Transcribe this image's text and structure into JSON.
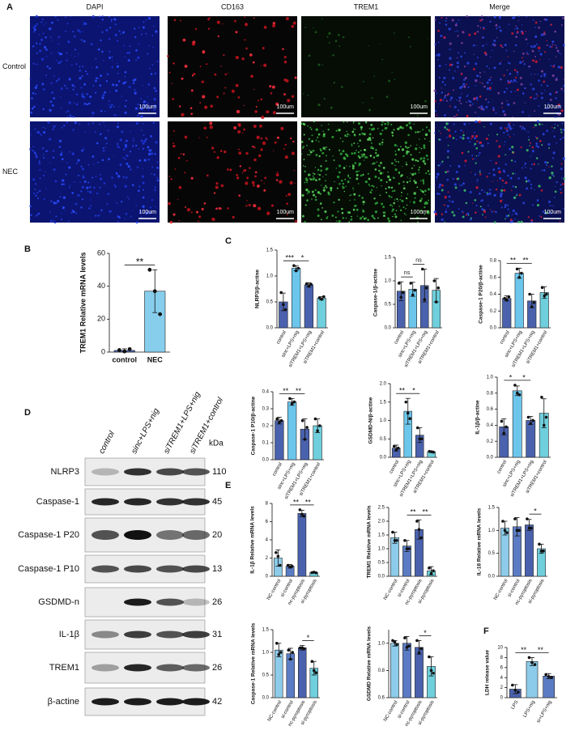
{
  "panel_a": {
    "label": "A",
    "columns": [
      "DAPI",
      "CD163",
      "TREM1",
      "Merge"
    ],
    "rows": [
      "Control",
      "NEC"
    ],
    "scale_bar": "100um"
  },
  "panel_d": {
    "label": "D",
    "lanes": [
      "control",
      "sinc+LPS+nig",
      "siTREM1+LPS+nig",
      "siTREM1+control"
    ],
    "unit": "kDa",
    "rows": [
      {
        "protein": "NLRP3",
        "kda": 110
      },
      {
        "protein": "Caspase-1",
        "kda": 45
      },
      {
        "protein": "Caspase-1 P20",
        "kda": 20
      },
      {
        "protein": "Caspase-1 P10",
        "kda": 13
      },
      {
        "protein": "GSDMD-n",
        "kda": 26
      },
      {
        "protein": "IL-1β",
        "kda": 31
      },
      {
        "protein": "TREM1",
        "kda": 26
      },
      {
        "protein": "β-actine",
        "kda": 42
      }
    ]
  },
  "chart_data": [
    {
      "type": "bar",
      "panel": "B",
      "ylabel": "TREM1 Relative mRNA levels",
      "categories": [
        "control",
        "NEC"
      ],
      "values": [
        1,
        37
      ],
      "errors": [
        1,
        13
      ],
      "points": [
        [
          1.2,
          0.4,
          1.8
        ],
        [
          50,
          37,
          23
        ]
      ],
      "colors": [
        "#4a62ad",
        "#87cdec"
      ],
      "ylim": [
        0,
        60
      ],
      "yticks": [
        0,
        20,
        40,
        60
      ],
      "brackets": [
        {
          "span": [
            0,
            1
          ],
          "label": "**"
        }
      ]
    },
    {
      "type": "bar",
      "panel": "C",
      "ylabel": "NLRP3/β-actine",
      "categories": [
        "control",
        "sinc+LPS+nig",
        "siTREM1+LPS+nig",
        "siTREM1+control"
      ],
      "values": [
        0.5,
        1.15,
        0.83,
        0.57
      ],
      "errors": [
        0.17,
        0.05,
        0.04,
        0.03
      ],
      "points": [
        [
          0.68,
          0.45,
          0.35
        ],
        [
          1.2,
          1.1,
          1.15
        ],
        [
          0.85,
          0.8,
          0.84
        ],
        [
          0.58,
          0.55,
          0.6
        ]
      ],
      "colors": [
        "#4a62ad",
        "#6cc6ec",
        "#4a62ad",
        "#6fcfdc"
      ],
      "ylim": [
        0,
        1.5
      ],
      "yticks": [
        {
          "value": 0,
          "label": "0.0"
        },
        0.5,
        {
          "value": 1,
          "label": "1.0"
        },
        1.5
      ],
      "brackets": [
        {
          "span": [
            0,
            1
          ],
          "label": "***"
        },
        {
          "span": [
            1,
            2
          ],
          "label": "*"
        }
      ]
    },
    {
      "type": "bar",
      "ylabel": "Caspase-1/β-actine",
      "categories": [
        "control",
        "sinc+LPS+nig",
        "siTREM1+LPS+nig",
        "siTREM1+control"
      ],
      "values": [
        0.78,
        0.82,
        0.9,
        0.8
      ],
      "errors": [
        0.2,
        0.15,
        0.35,
        0.25
      ],
      "points": [
        [
          0.95,
          0.65,
          0.75
        ],
        [
          0.95,
          0.7,
          0.8
        ],
        [
          1.25,
          0.6,
          0.85
        ],
        [
          1.0,
          0.55,
          0.85
        ]
      ],
      "colors": [
        "#4a62ad",
        "#6cc6ec",
        "#4a62ad",
        "#6fcfdc"
      ],
      "ylim": [
        0,
        1.5
      ],
      "yticks": [
        {
          "value": 0,
          "label": "0.0"
        },
        0.5,
        {
          "value": 1,
          "label": "1.0"
        },
        1.5
      ],
      "brackets": [
        {
          "span": [
            0,
            1
          ],
          "label": "ns"
        },
        {
          "span": [
            1,
            2
          ],
          "label": "ns"
        }
      ]
    },
    {
      "type": "bar",
      "ylabel": "Caspase-1 P20/β-actine",
      "categories": [
        "control",
        "sinc+LPS+nig",
        "siTREM1+LPS+nig",
        "siTREM1+control"
      ],
      "values": [
        0.35,
        0.65,
        0.32,
        0.42
      ],
      "errors": [
        0.03,
        0.06,
        0.08,
        0.07
      ],
      "points": [
        [
          0.35,
          0.33,
          0.37
        ],
        [
          0.7,
          0.6,
          0.65
        ],
        [
          0.4,
          0.25,
          0.3
        ],
        [
          0.48,
          0.38,
          0.4
        ]
      ],
      "colors": [
        "#4a62ad",
        "#6cc6ec",
        "#4a62ad",
        "#6fcfdc"
      ],
      "ylim": [
        0,
        0.8
      ],
      "yticks": [
        {
          "value": 0,
          "label": "0.0"
        },
        0.2,
        0.4,
        0.6,
        0.8
      ],
      "brackets": [
        {
          "span": [
            0,
            1
          ],
          "label": "**"
        },
        {
          "span": [
            1,
            2
          ],
          "label": "**"
        }
      ]
    },
    {
      "type": "bar",
      "ylabel": "Caspase-1 P10/β-actine",
      "categories": [
        "control",
        "sinc+LPS+nig",
        "siTREM1+LPS+nig",
        "siTREM1+control"
      ],
      "values": [
        0.23,
        0.34,
        0.18,
        0.2
      ],
      "errors": [
        0.02,
        0.02,
        0.06,
        0.04
      ],
      "points": [
        [
          0.24,
          0.22,
          0.23
        ],
        [
          0.36,
          0.33,
          0.34
        ],
        [
          0.23,
          0.12,
          0.19
        ],
        [
          0.24,
          0.17,
          0.2
        ]
      ],
      "colors": [
        "#4a62ad",
        "#6cc6ec",
        "#4a62ad",
        "#6fcfdc"
      ],
      "ylim": [
        0,
        0.4
      ],
      "yticks": [
        {
          "value": 0,
          "label": "0.0"
        },
        0.1,
        0.2,
        0.3,
        0.4
      ],
      "brackets": [
        {
          "span": [
            0,
            1
          ],
          "label": "**"
        },
        {
          "span": [
            1,
            2
          ],
          "label": "**"
        }
      ]
    },
    {
      "type": "bar",
      "ylabel": "GSDMD-N/β-actine",
      "categories": [
        "control",
        "sinc+LPS+nig",
        "siTREM1+LPS+nig",
        "siTREM1+control"
      ],
      "values": [
        0.25,
        1.25,
        0.6,
        0.15
      ],
      "errors": [
        0.08,
        0.35,
        0.2,
        0.02
      ],
      "points": [
        [
          0.3,
          0.2,
          0.25
        ],
        [
          1.5,
          1.2,
          1.05
        ],
        [
          0.8,
          0.5,
          0.5
        ],
        [
          0.16,
          0.15,
          0.14
        ]
      ],
      "colors": [
        "#4a62ad",
        "#6cc6ec",
        "#4a62ad",
        "#6fcfdc"
      ],
      "ylim": [
        0,
        2
      ],
      "yticks": [
        {
          "value": 0,
          "label": "0.0"
        },
        0.5,
        {
          "value": 1,
          "label": "1.0"
        },
        1.5,
        {
          "value": 2,
          "label": "2.0"
        }
      ],
      "brackets": [
        {
          "span": [
            0,
            1
          ],
          "label": "**"
        },
        {
          "span": [
            1,
            2
          ],
          "label": "*"
        }
      ]
    },
    {
      "type": "bar",
      "ylabel": "IL-1β/β-actine",
      "categories": [
        "control",
        "sinc+LPS+nig",
        "siTREM1+LPS+nig",
        "siTREM1+control"
      ],
      "values": [
        0.38,
        0.83,
        0.46,
        0.55
      ],
      "errors": [
        0.1,
        0.06,
        0.05,
        0.18
      ],
      "points": [
        [
          0.45,
          0.3,
          0.38
        ],
        [
          0.9,
          0.8,
          0.78
        ],
        [
          0.5,
          0.42,
          0.46
        ],
        [
          0.75,
          0.4,
          0.5
        ]
      ],
      "colors": [
        "#4a62ad",
        "#6cc6ec",
        "#4a62ad",
        "#6fcfdc"
      ],
      "ylim": [
        0,
        1
      ],
      "yticks": [
        {
          "value": 0,
          "label": "0.0"
        },
        0.2,
        0.4,
        0.6,
        0.8,
        {
          "value": 1,
          "label": "1.0"
        }
      ],
      "brackets": [
        {
          "span": [
            0,
            1
          ],
          "label": "*"
        },
        {
          "span": [
            1,
            2
          ],
          "label": "*"
        }
      ]
    },
    {
      "type": "bar",
      "panel": "E",
      "ylabel": "IL-1β Relative mRNA levels",
      "categories": [
        "NC-control",
        "si-control",
        "nc-pyroptosis",
        "si-pyroptosis"
      ],
      "values": [
        2.0,
        1.1,
        6.9,
        0.4
      ],
      "errors": [
        0.9,
        0.2,
        0.35,
        0.05
      ],
      "points": [
        [
          2.6,
          2.2,
          1.2
        ],
        [
          1.2,
          1.0,
          1.1
        ],
        [
          7.3,
          6.8,
          6.6
        ],
        [
          0.4,
          0.45,
          0.38
        ]
      ],
      "colors": [
        "#8ccbe9",
        "#5b7cc4",
        "#4a62ad",
        "#6fcfdc"
      ],
      "ylim": [
        0,
        8
      ],
      "yticks": [
        0,
        2,
        4,
        6,
        8
      ],
      "brackets": [
        {
          "span": [
            1,
            2
          ],
          "label": "**"
        },
        {
          "span": [
            2,
            3
          ],
          "label": "**"
        }
      ]
    },
    {
      "type": "bar",
      "ylabel": "TREM1 Relative mRNA levels",
      "categories": [
        "NC-control",
        "si-control",
        "nc-pyroptosis",
        "si-pyroptosis"
      ],
      "values": [
        1.4,
        1.1,
        1.7,
        0.2
      ],
      "errors": [
        0.2,
        0.2,
        0.35,
        0.15
      ],
      "points": [
        [
          1.6,
          1.3,
          1.3
        ],
        [
          1.3,
          1.0,
          1.0
        ],
        [
          2.0,
          1.7,
          1.4
        ],
        [
          0.3,
          0.1,
          0.2
        ]
      ],
      "colors": [
        "#8ccbe9",
        "#5b7cc4",
        "#4a62ad",
        "#6fcfdc"
      ],
      "ylim": [
        0,
        2.5
      ],
      "yticks": [
        {
          "value": 0,
          "label": "0.0"
        },
        0.5,
        {
          "value": 1,
          "label": "1.0"
        },
        1.5,
        {
          "value": 2,
          "label": "2.0"
        },
        2.5
      ],
      "brackets": [
        {
          "span": [
            1,
            2
          ],
          "label": "**"
        },
        {
          "span": [
            2,
            3
          ],
          "label": "**"
        }
      ]
    },
    {
      "type": "bar",
      "ylabel": "IL-18 Relative mRNA levels",
      "categories": [
        "NC-control",
        "si-control",
        "nc-pyroptosis",
        "si-pyroptosis"
      ],
      "values": [
        1.05,
        1.08,
        1.12,
        0.6
      ],
      "errors": [
        0.15,
        0.2,
        0.12,
        0.1
      ],
      "points": [
        [
          1.2,
          1.0,
          0.95
        ],
        [
          1.25,
          1.0,
          1.0
        ],
        [
          1.25,
          1.05,
          1.05
        ],
        [
          0.7,
          0.55,
          0.55
        ]
      ],
      "colors": [
        "#8ccbe9",
        "#5b7cc4",
        "#4a62ad",
        "#6fcfdc"
      ],
      "ylim": [
        0,
        1.5
      ],
      "yticks": [
        {
          "value": 0,
          "label": "0.0"
        },
        0.5,
        {
          "value": 1,
          "label": "1.0"
        },
        1.5
      ],
      "brackets": [
        {
          "span": [
            2,
            3
          ],
          "label": "*"
        }
      ]
    },
    {
      "type": "bar",
      "ylabel": "Caspase-1 Relative mRNA levels",
      "categories": [
        "NC-control",
        "si-control",
        "nc-pyroptosis",
        "si-pyroptosis"
      ],
      "values": [
        1.05,
        0.97,
        1.1,
        0.65
      ],
      "errors": [
        0.15,
        0.12,
        0.05,
        0.15
      ],
      "points": [
        [
          1.2,
          0.95,
          1.0
        ],
        [
          1.05,
          0.85,
          1.0
        ],
        [
          1.1,
          1.1,
          1.08
        ],
        [
          0.8,
          0.6,
          0.55
        ]
      ],
      "colors": [
        "#8ccbe9",
        "#5b7cc4",
        "#4a62ad",
        "#6fcfdc"
      ],
      "ylim": [
        0,
        1.5
      ],
      "yticks": [
        {
          "value": 0,
          "label": "0.0"
        },
        0.5,
        {
          "value": 1,
          "label": "1.0"
        },
        1.5
      ],
      "brackets": [
        {
          "span": [
            2,
            3
          ],
          "label": "*"
        }
      ]
    },
    {
      "type": "bar",
      "ylabel": "GSDMD Relative mRNA levels",
      "categories": [
        "NC-control",
        "si-control",
        "nc-pyroptosis",
        "si-pyroptosis"
      ],
      "values": [
        1.0,
        1.0,
        0.97,
        0.83
      ],
      "errors": [
        0.02,
        0.05,
        0.05,
        0.07
      ],
      "points": [
        [
          1.02,
          1.01,
          0.99
        ],
        [
          1.04,
          0.97,
          0.98
        ],
        [
          1.02,
          0.93,
          0.96
        ],
        [
          0.9,
          0.8,
          0.78
        ]
      ],
      "colors": [
        "#8ccbe9",
        "#5b7cc4",
        "#4a62ad",
        "#6fcfdc"
      ],
      "ylim": [
        0.6,
        1.1
      ],
      "yticks": [
        0.6,
        0.8,
        {
          "value": 1,
          "label": "1.0"
        }
      ],
      "brackets": [
        {
          "span": [
            2,
            3
          ],
          "label": "*"
        }
      ]
    },
    {
      "type": "bar",
      "panel": "F",
      "ylabel": "LDH release value",
      "categories": [
        "LPS",
        "LPS+nig",
        "si+LPS+nig"
      ],
      "values": [
        1.7,
        7.2,
        4.3
      ],
      "errors": [
        0.9,
        0.8,
        0.5
      ],
      "points": [
        [
          2.5,
          1.5,
          1.1
        ],
        [
          8.0,
          7.0,
          6.6
        ],
        [
          4.6,
          4.2,
          4.0
        ]
      ],
      "colors": [
        "#4a62ad",
        "#8ccbe9",
        "#5b7cc4"
      ],
      "ylim": [
        0,
        10
      ],
      "yticks": [
        0,
        2,
        4,
        6,
        8,
        10
      ],
      "brackets": [
        {
          "span": [
            0,
            1
          ],
          "label": "**"
        },
        {
          "span": [
            1,
            2
          ],
          "label": "**"
        }
      ]
    }
  ]
}
